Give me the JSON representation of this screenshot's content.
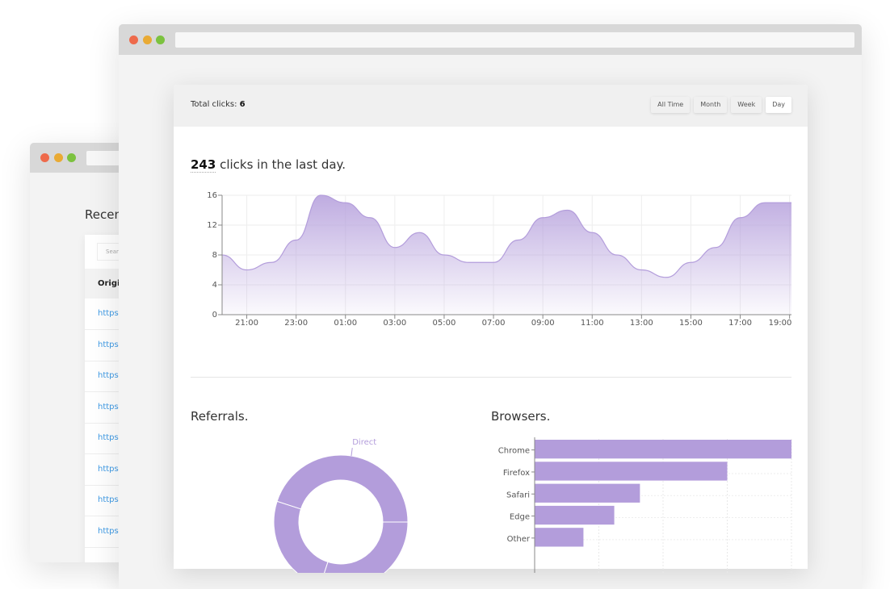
{
  "left_window": {
    "heading": "Recen",
    "search_placeholder": "Sear",
    "column_header": "Origi",
    "rows": [
      "https:",
      "https:",
      "https:",
      "https:",
      "https:",
      "https:",
      "https:",
      "https:"
    ]
  },
  "colors": {
    "accent": "#b39ddb",
    "link": "#3f9be6",
    "dot_red": "#ee6a4b",
    "dot_yellow": "#e9aa34",
    "dot_green": "#7cc23f"
  },
  "header": {
    "total_label": "Total clicks:",
    "total_value": "6",
    "ranges": [
      {
        "label": "All Time",
        "active": false
      },
      {
        "label": "Month",
        "active": false
      },
      {
        "label": "Week",
        "active": false
      },
      {
        "label": "Day",
        "active": true
      }
    ]
  },
  "summary": {
    "count": "243",
    "text": " clicks in the last day."
  },
  "chart_data": [
    {
      "type": "area",
      "x": [
        "20:00",
        "21:00",
        "22:00",
        "23:00",
        "00:00",
        "01:00",
        "02:00",
        "03:00",
        "04:00",
        "05:00",
        "06:00",
        "07:00",
        "08:00",
        "09:00",
        "10:00",
        "11:00",
        "12:00",
        "13:00",
        "14:00",
        "15:00",
        "16:00",
        "17:00",
        "18:00",
        "19:00"
      ],
      "values": [
        8,
        6,
        7,
        10,
        16,
        15,
        13,
        9,
        11,
        8,
        7,
        7,
        10,
        13,
        14,
        11,
        8,
        6,
        5,
        7,
        9,
        13,
        15,
        15
      ],
      "x_tick_labels": [
        "21:00",
        "23:00",
        "01:00",
        "03:00",
        "05:00",
        "07:00",
        "09:00",
        "11:00",
        "13:00",
        "15:00",
        "17:00",
        "19:00"
      ],
      "y_ticks": [
        0,
        4,
        8,
        12,
        16
      ],
      "ylim": [
        0,
        16
      ],
      "grid": true
    },
    {
      "type": "pie",
      "title": "Referrals.",
      "donut": true,
      "slices": [
        {
          "name": "Direct",
          "value": 45
        },
        {
          "name": "",
          "value": 30
        },
        {
          "name": "",
          "value": 25
        }
      ]
    },
    {
      "type": "bar",
      "orientation": "horizontal",
      "title": "Browsers.",
      "categories": [
        "Chrome",
        "Firefox",
        "Safari",
        "Edge",
        "Other"
      ],
      "values": [
        100,
        75,
        41,
        31,
        19
      ],
      "xlim": [
        0,
        100
      ],
      "grid": true
    }
  ]
}
